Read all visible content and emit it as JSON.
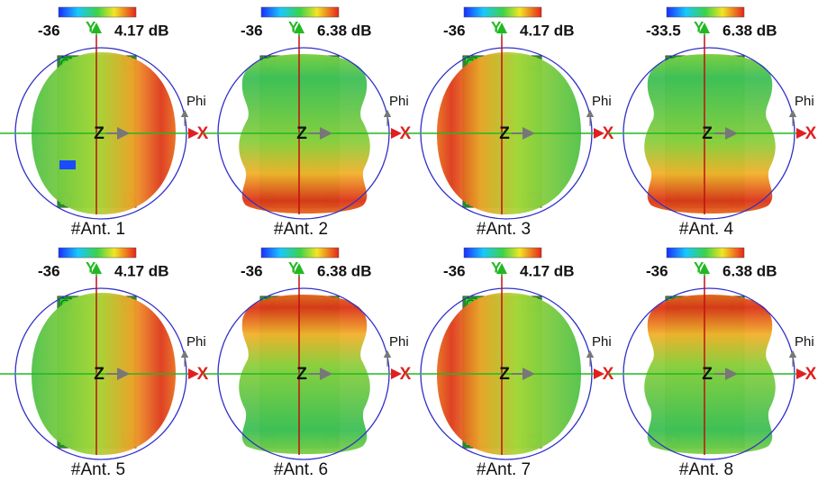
{
  "panels": [
    {
      "label": "#Ant. 1",
      "scale_min": "-36",
      "scale_max": "4.17 dB",
      "y_axis": "Y",
      "x_axis": "X",
      "z_axis": "Z",
      "phi": "Phi"
    },
    {
      "label": "#Ant. 2",
      "scale_min": "-36",
      "scale_max": "6.38 dB",
      "y_axis": "Y",
      "x_axis": "X",
      "z_axis": "Z",
      "phi": "Phi"
    },
    {
      "label": "#Ant. 3",
      "scale_min": "-36",
      "scale_max": "4.17 dB",
      "y_axis": "Y",
      "x_axis": "X",
      "z_axis": "Z",
      "phi": "Phi"
    },
    {
      "label": "#Ant. 4",
      "scale_min": "-33.5",
      "scale_max": "6.38 dB",
      "y_axis": "Y",
      "x_axis": "X",
      "z_axis": "Z",
      "phi": "Phi"
    },
    {
      "label": "#Ant. 5",
      "scale_min": "-36",
      "scale_max": "4.17 dB",
      "y_axis": "Y",
      "x_axis": "X",
      "z_axis": "Z",
      "phi": "Phi"
    },
    {
      "label": "#Ant. 6",
      "scale_min": "-36",
      "scale_max": "6.38 dB",
      "y_axis": "Y",
      "x_axis": "X",
      "z_axis": "Z",
      "phi": "Phi"
    },
    {
      "label": "#Ant. 7",
      "scale_min": "-36",
      "scale_max": "4.17 dB",
      "y_axis": "Y",
      "x_axis": "X",
      "z_axis": "Z",
      "phi": "Phi"
    },
    {
      "label": "#Ant. 8",
      "scale_min": "-36",
      "scale_max": "6.38 dB",
      "y_axis": "Y",
      "x_axis": "X",
      "z_axis": "Z",
      "phi": "Phi"
    }
  ]
}
